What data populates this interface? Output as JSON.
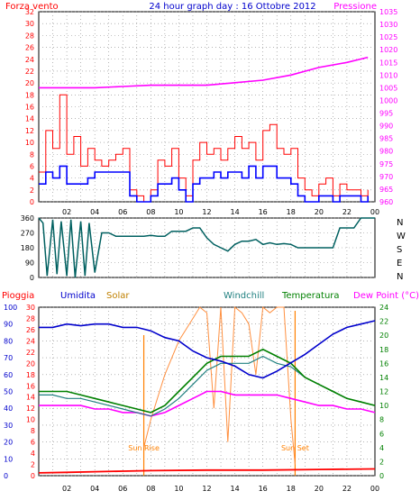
{
  "header": {
    "left_label": "Forza vento",
    "title": "24 hour graph day : 16 Ottobre 2012",
    "right_label": "Pressione"
  },
  "colors": {
    "wind": "#ff0000",
    "avg": "#0000ff",
    "pressure": "#ff00ff",
    "direction": "#006060",
    "rain": "#ff0000",
    "humidity": "#0000cc",
    "solar": "#ff9040",
    "windchill": "#208080",
    "temperature": "#008000",
    "dewpoint": "#ff00ff",
    "sun": "#ff8000"
  },
  "chart_data": [
    {
      "type": "line",
      "name": "wind-pressure",
      "x_ticks": [
        "02",
        "04",
        "06",
        "08",
        "10",
        "12",
        "14",
        "16",
        "18",
        "20",
        "22",
        "00"
      ],
      "xlim": [
        0,
        24
      ],
      "y_left_ticks": [
        "0",
        "2",
        "4",
        "6",
        "8",
        "10",
        "12",
        "14",
        "16",
        "18",
        "20",
        "22",
        "24",
        "26",
        "28",
        "30",
        "32"
      ],
      "y_left_lim": [
        0,
        32
      ],
      "y_right_ticks": [
        "960",
        "965",
        "970",
        "975",
        "980",
        "985",
        "990",
        "995",
        "1000",
        "1005",
        "1010",
        "1015",
        "1020",
        "1025",
        "1030",
        "1035"
      ],
      "y_right_lim": [
        960,
        1035
      ],
      "series": [
        {
          "role": "gust",
          "x": [
            0,
            0.5,
            1,
            1.5,
            2,
            2.5,
            3,
            3.5,
            4,
            4.5,
            5,
            5.5,
            6,
            6.5,
            7,
            7.5,
            8,
            8.5,
            9,
            9.5,
            10,
            10.5,
            11,
            11.5,
            12,
            12.5,
            13,
            13.5,
            14,
            14.5,
            15,
            15.5,
            16,
            16.5,
            17,
            17.5,
            18,
            18.5,
            19,
            19.5,
            20,
            20.5,
            21,
            21.5,
            22,
            22.5,
            23,
            23.5
          ],
          "y": [
            5,
            12,
            9,
            18,
            8,
            11,
            6,
            9,
            7,
            6,
            7,
            8,
            9,
            2,
            1,
            0,
            2,
            7,
            6,
            9,
            4,
            1,
            7,
            10,
            8,
            9,
            7,
            9,
            11,
            9,
            10,
            7,
            12,
            13,
            9,
            8,
            9,
            4,
            2,
            1,
            3,
            4,
            1,
            3,
            2,
            2,
            1,
            2
          ]
        },
        {
          "role": "average",
          "x": [
            0,
            0.5,
            1,
            1.5,
            2,
            2.5,
            3,
            3.5,
            4,
            4.5,
            5,
            5.5,
            6,
            6.5,
            7,
            7.5,
            8,
            8.5,
            9,
            9.5,
            10,
            10.5,
            11,
            11.5,
            12,
            12.5,
            13,
            13.5,
            14,
            14.5,
            15,
            15.5,
            16,
            16.5,
            17,
            17.5,
            18,
            18.5,
            19,
            19.5,
            20,
            20.5,
            21,
            21.5,
            22,
            22.5,
            23,
            23.5
          ],
          "y": [
            3,
            5,
            4,
            6,
            3,
            3,
            3,
            4,
            5,
            5,
            5,
            5,
            5,
            1,
            0,
            0,
            1,
            3,
            3,
            4,
            2,
            0,
            3,
            4,
            4,
            5,
            4,
            5,
            5,
            4,
            6,
            4,
            6,
            6,
            4,
            4,
            3,
            1,
            0,
            0,
            1,
            1,
            0,
            1,
            1,
            1,
            0,
            1
          ]
        },
        {
          "role": "pressure",
          "x": [
            0,
            2,
            4,
            6,
            8,
            10,
            12,
            14,
            16,
            18,
            20,
            22,
            23.5
          ],
          "y": [
            1005,
            1005,
            1005,
            1005.5,
            1006,
            1006,
            1006,
            1007,
            1008,
            1010,
            1013,
            1015,
            1017
          ]
        }
      ]
    },
    {
      "type": "line",
      "name": "wind-direction",
      "x_ticks": [
        "02",
        "04",
        "06",
        "08",
        "10",
        "12",
        "14",
        "16",
        "18",
        "20",
        "22",
        "00"
      ],
      "xlim": [
        0,
        24
      ],
      "y_ticks": [
        "360",
        "270",
        "180",
        "90",
        "0"
      ],
      "ylim": [
        0,
        360
      ],
      "compass": [
        "N",
        "W",
        "S",
        "E",
        "N"
      ],
      "series": [
        {
          "role": "direction",
          "x": [
            0,
            0.3,
            0.6,
            1,
            1.3,
            1.6,
            2,
            2.3,
            2.6,
            3,
            3.3,
            3.6,
            4,
            4.5,
            5,
            5.5,
            6,
            6.5,
            7,
            7.5,
            8,
            8.5,
            9,
            9.5,
            10,
            10.5,
            11,
            11.5,
            12,
            12.5,
            13,
            13.5,
            14,
            14.5,
            15,
            15.5,
            16,
            16.5,
            17,
            17.5,
            18,
            18.5,
            19,
            19.5,
            20,
            20.5,
            21,
            21.5,
            22,
            22.5,
            23,
            23.5,
            24
          ],
          "y": [
            360,
            330,
            10,
            350,
            20,
            340,
            10,
            350,
            0,
            340,
            10,
            330,
            30,
            270,
            270,
            250,
            250,
            250,
            250,
            250,
            255,
            250,
            250,
            280,
            280,
            280,
            300,
            300,
            240,
            200,
            180,
            160,
            200,
            220,
            220,
            230,
            200,
            210,
            200,
            205,
            200,
            180,
            180,
            180,
            180,
            180,
            180,
            300,
            300,
            300,
            360,
            360,
            360
          ]
        }
      ]
    },
    {
      "type": "line",
      "name": "weather-multi",
      "legend": [
        "Pioggia",
        "Umidita",
        "Solar",
        "Windchill",
        "Temperatura",
        "Dew Point (°C)"
      ],
      "x_ticks": [
        "02",
        "04",
        "06",
        "08",
        "10",
        "12",
        "14",
        "16",
        "18",
        "20",
        "22",
        "00"
      ],
      "xlim": [
        0,
        24
      ],
      "humidity_ticks": [
        "0",
        "10",
        "20",
        "30",
        "40",
        "50",
        "60",
        "70",
        "80",
        "90",
        "100"
      ],
      "humidity_lim": [
        0,
        100
      ],
      "rain_ticks": [
        "0",
        "2",
        "4",
        "6",
        "8",
        "10",
        "12",
        "14",
        "16",
        "18",
        "20",
        "22",
        "24",
        "26",
        "28",
        "30"
      ],
      "rain_lim": [
        0,
        30
      ],
      "temp_ticks": [
        "0",
        "2",
        "4",
        "6",
        "8",
        "10",
        "12",
        "14",
        "16",
        "18",
        "20",
        "22",
        "24"
      ],
      "temp_lim": [
        0,
        24
      ],
      "annotations": {
        "sunrise_label": "Sun Rise",
        "sunrise_x": 7.5,
        "sunset_label": "Sun Set",
        "sunset_x": 18.3
      },
      "series": [
        {
          "role": "humidity",
          "x": [
            0,
            1,
            2,
            3,
            4,
            5,
            6,
            7,
            8,
            9,
            10,
            11,
            12,
            13,
            14,
            15,
            16,
            17,
            18,
            19,
            20,
            21,
            22,
            23,
            24
          ],
          "y": [
            88,
            88,
            90,
            89,
            90,
            90,
            88,
            88,
            86,
            82,
            80,
            74,
            70,
            68,
            65,
            60,
            58,
            62,
            67,
            72,
            78,
            84,
            88,
            90,
            92
          ]
        },
        {
          "role": "temperature",
          "x": [
            0,
            1,
            2,
            3,
            4,
            5,
            6,
            7,
            8,
            9,
            10,
            11,
            12,
            13,
            14,
            15,
            16,
            17,
            18,
            19,
            20,
            21,
            22,
            23,
            24
          ],
          "y": [
            12,
            12,
            12,
            11.5,
            11,
            10.5,
            10,
            9.5,
            9,
            10,
            12,
            14,
            16,
            17,
            17,
            17,
            18,
            17,
            16,
            14,
            13,
            12,
            11,
            10.5,
            10
          ]
        },
        {
          "role": "windchill",
          "x": [
            0,
            1,
            2,
            3,
            4,
            5,
            6,
            7,
            8,
            9,
            10,
            11,
            12,
            13,
            14,
            15,
            16,
            17,
            18,
            19,
            20,
            21,
            22,
            23,
            24
          ],
          "y": [
            11.5,
            11.5,
            11,
            11,
            10.5,
            10,
            9.5,
            9,
            8.5,
            9.5,
            11,
            13,
            15,
            16,
            16,
            16,
            17,
            16,
            15.5,
            14,
            13,
            12,
            11,
            10.5,
            10
          ]
        },
        {
          "role": "dewpoint",
          "x": [
            0,
            1,
            2,
            3,
            4,
            5,
            6,
            7,
            8,
            9,
            10,
            11,
            12,
            13,
            14,
            15,
            16,
            17,
            18,
            19,
            20,
            21,
            22,
            23,
            24
          ],
          "y": [
            10,
            10,
            10,
            10,
            9.5,
            9.5,
            9,
            9,
            8.5,
            9,
            10,
            11,
            12,
            12,
            11.5,
            11.5,
            11.5,
            11.5,
            11,
            10.5,
            10,
            10,
            9.5,
            9.5,
            9
          ]
        },
        {
          "role": "solar",
          "x": [
            7.5,
            8,
            9,
            10,
            11,
            11.5,
            12,
            12.5,
            13,
            13.5,
            14,
            14.5,
            15,
            15.5,
            16,
            16.5,
            17,
            17.5,
            18,
            18.3
          ],
          "y": [
            5,
            10,
            18,
            24,
            28,
            30,
            29,
            12,
            30,
            6,
            30,
            29,
            27,
            18,
            30,
            29,
            30,
            30,
            10,
            2
          ]
        },
        {
          "role": "rain",
          "x": [
            0,
            2,
            4,
            6,
            8,
            12,
            16,
            20,
            24
          ],
          "y": [
            0.5,
            0.6,
            0.7,
            0.8,
            0.9,
            1,
            1,
            1.1,
            1.2
          ]
        }
      ]
    }
  ]
}
